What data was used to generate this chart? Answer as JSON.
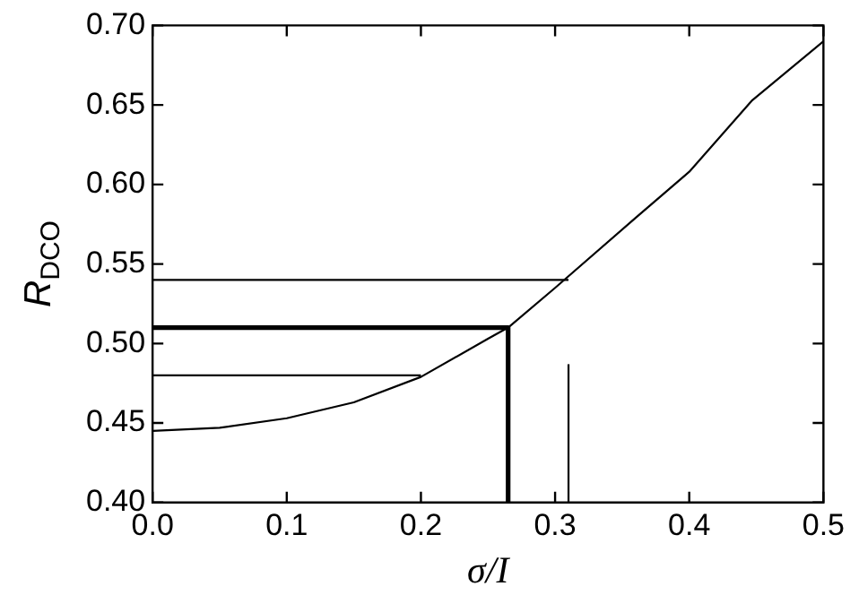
{
  "chart_data": {
    "type": "line",
    "xlabel": "σ/I",
    "ylabel": "R$_{DCO}$",
    "xlim": [
      0,
      0.5
    ],
    "ylim": [
      0.4,
      0.7
    ],
    "xticks": [
      {
        "value": 0,
        "label": "0.0"
      },
      {
        "value": 0.1,
        "label": "0.1"
      },
      {
        "value": 0.2,
        "label": "0.2"
      },
      {
        "value": 0.3,
        "label": "0.3"
      },
      {
        "value": 0.4,
        "label": "0.4"
      },
      {
        "value": 0.5,
        "label": "0.5"
      }
    ],
    "yticks": [
      {
        "value": 0.4,
        "label": "0.40"
      },
      {
        "value": 0.45,
        "label": "0.45"
      },
      {
        "value": 0.5,
        "label": "0.50"
      },
      {
        "value": 0.55,
        "label": "0.55"
      },
      {
        "value": 0.6,
        "label": "0.60"
      },
      {
        "value": 0.65,
        "label": "0.65"
      },
      {
        "value": 0.7,
        "label": "0.70"
      }
    ],
    "grid": false,
    "legend": false,
    "marker": "none",
    "line_style": "solid",
    "series": [
      {
        "color": "#000000",
        "x": [
          0,
          0.05,
          0.1,
          0.15,
          0.2,
          0.25,
          0.265,
          0.3,
          0.36,
          0.4,
          0.447,
          0.5
        ],
        "values": [
          0.445,
          0.447,
          0.453,
          0.463,
          0.479,
          0.503,
          0.51,
          0.535,
          0.579,
          0.608,
          0.653,
          0.69
        ]
      },
      {
        "color": "#000000",
        "x": [
          0,
          0.265,
          0.265
        ],
        "values": [
          0.51,
          0.51,
          0.4
        ]
      },
      {
        "color": "#000000",
        "x": [
          0,
          0.31
        ],
        "values": [
          0.54,
          0.54
        ]
      },
      {
        "color": "#000000",
        "x": [
          0,
          0.2
        ],
        "values": [
          0.48,
          0.48
        ]
      },
      {
        "color": "#000000",
        "x": [
          0.31,
          0.31
        ],
        "values": [
          0.4,
          0.487
        ]
      }
    ]
  }
}
